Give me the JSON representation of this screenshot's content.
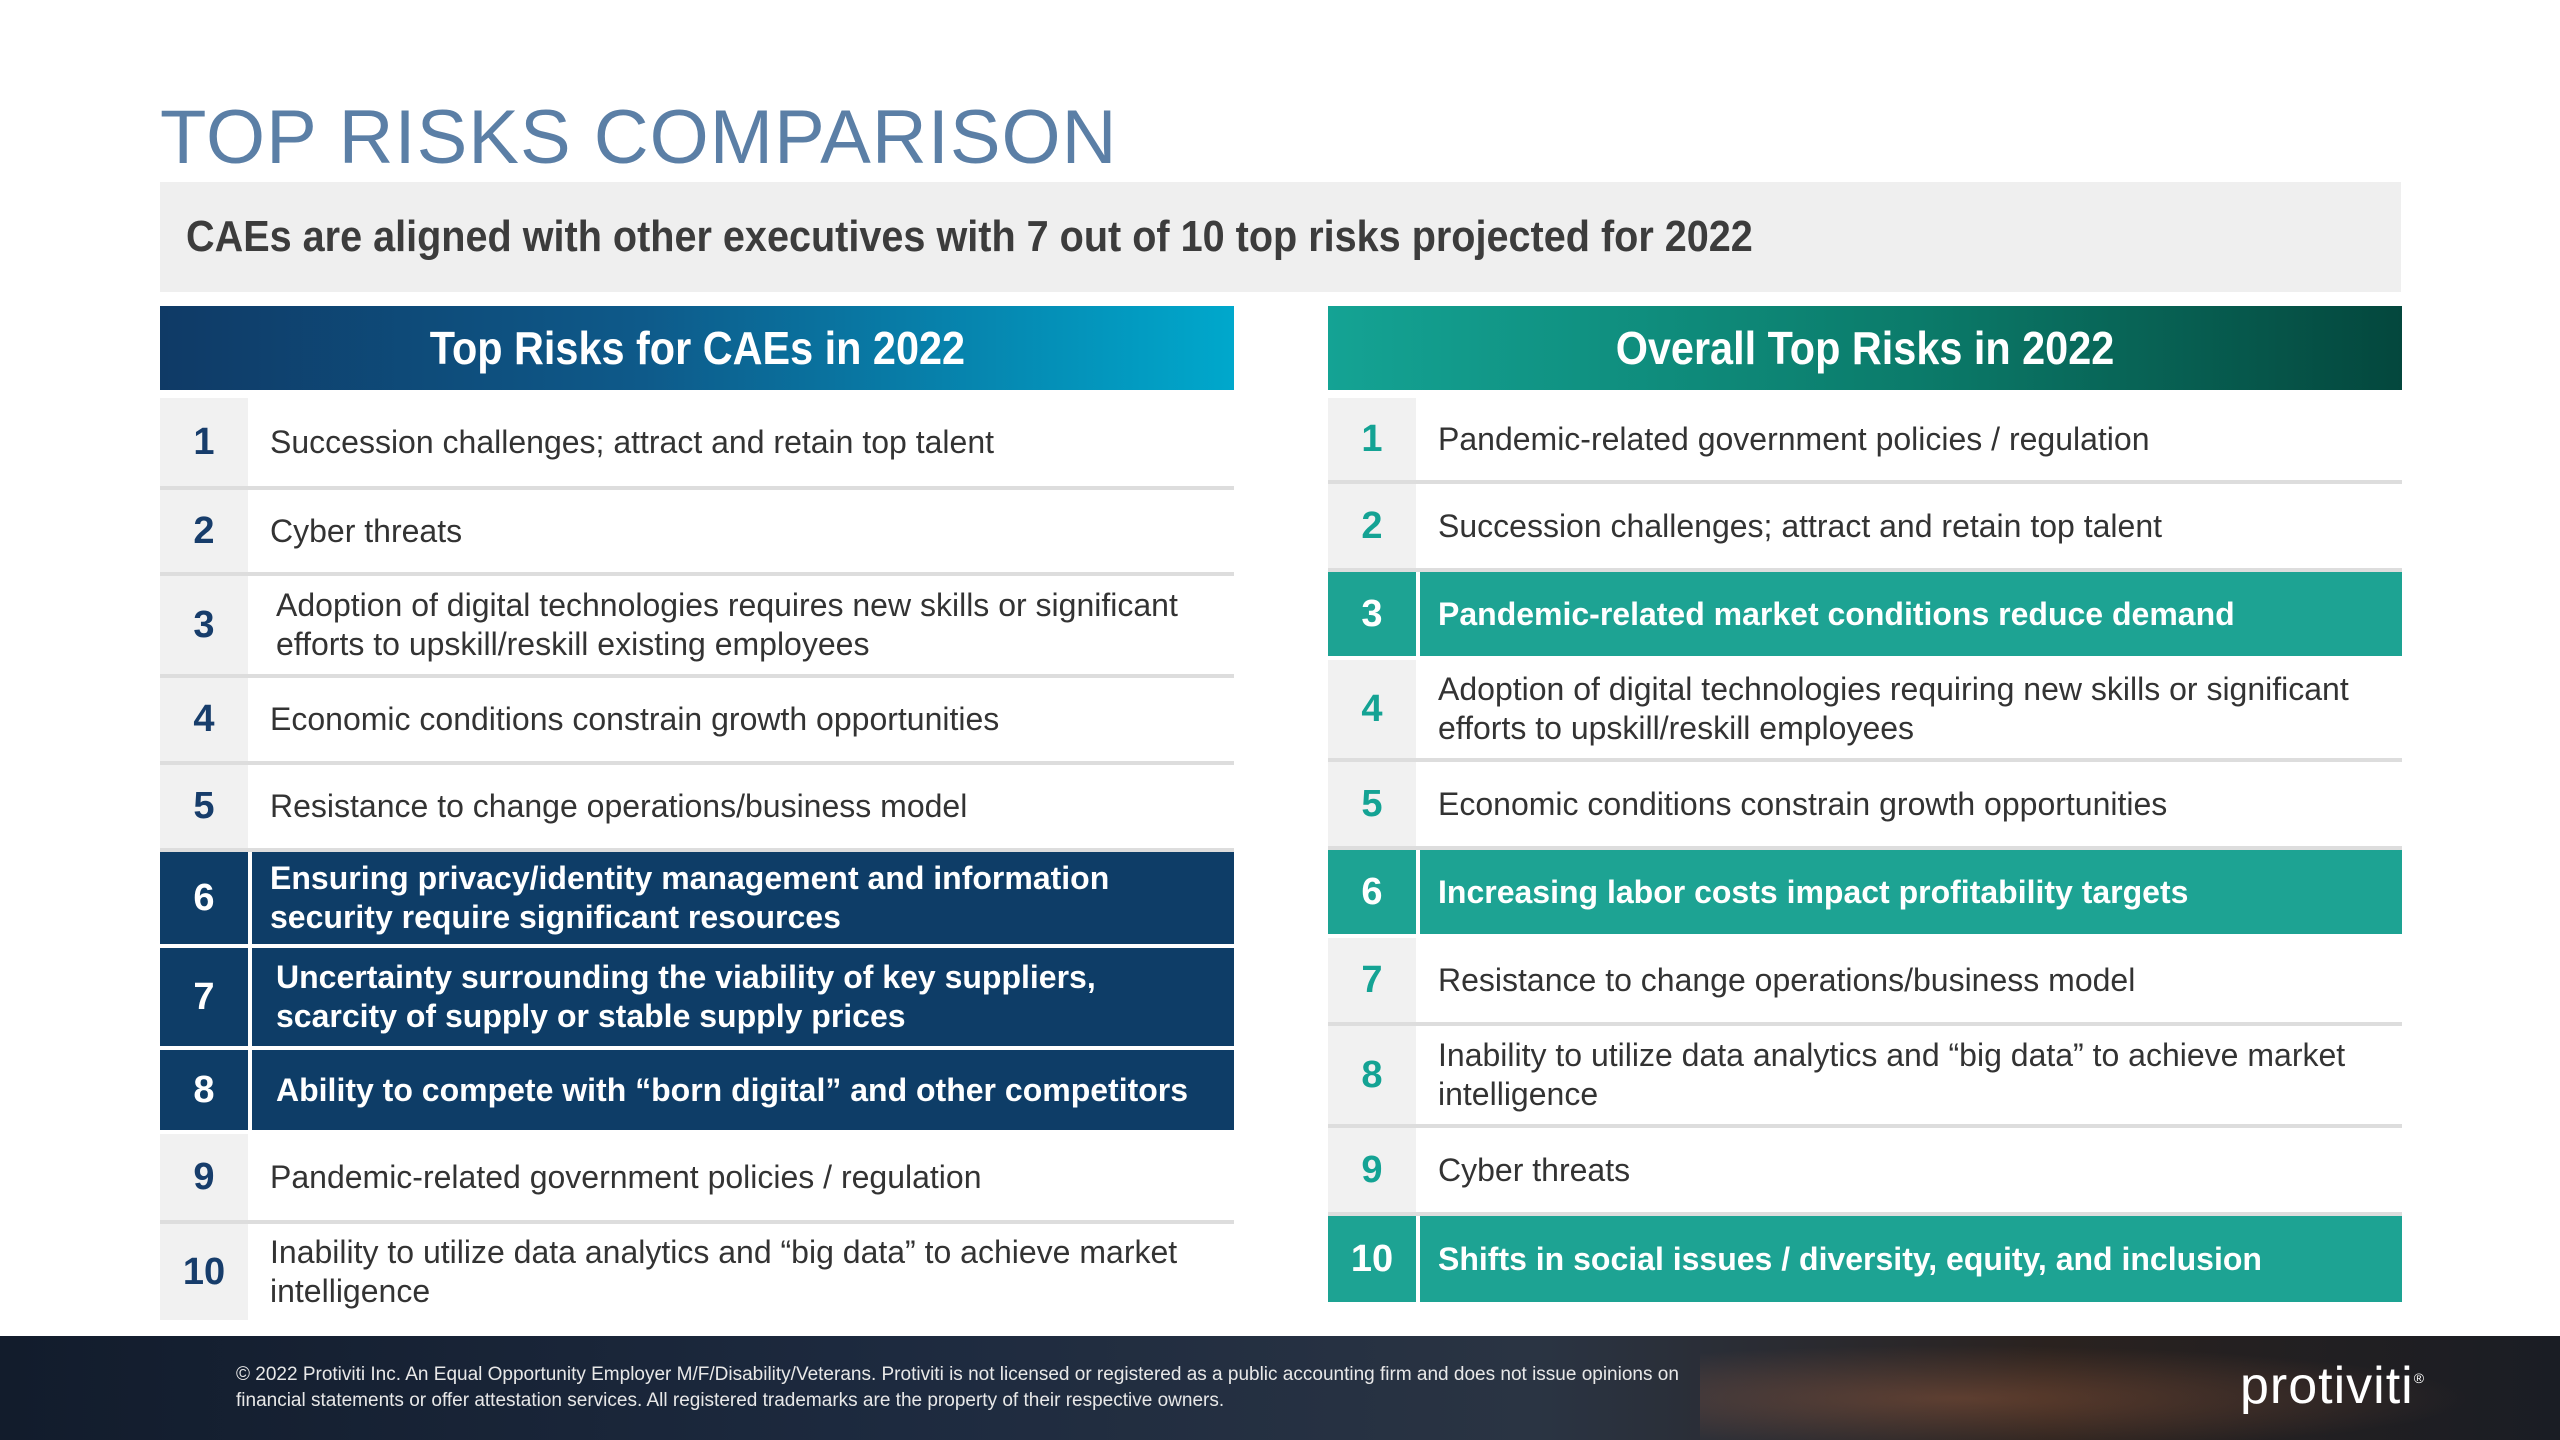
{
  "title": "TOP RISKS COMPARISON",
  "subtitle": "CAEs are aligned with other executives with 7 out of 10 top risks projected for 2022",
  "colors": {
    "title": "#5b7fa6",
    "cae_highlight": "#0e3d67",
    "overall_highlight": "#1da393"
  },
  "cae": {
    "header": "Top Risks for CAEs in 2022",
    "rows": [
      {
        "num": "1",
        "text": "Succession challenges; attract and retain top talent"
      },
      {
        "num": "2",
        "text": "Cyber threats"
      },
      {
        "num": "3",
        "text": "Adoption of digital technologies requires new skills or significant efforts to upskill/reskill existing employees"
      },
      {
        "num": "4",
        "text": "Economic conditions constrain growth opportunities"
      },
      {
        "num": "5",
        "text": "Resistance to change operations/business model"
      },
      {
        "num": "6",
        "text": "Ensuring privacy/identity management and information security require significant resources"
      },
      {
        "num": "7",
        "text": "Uncertainty surrounding the viability of key suppliers, scarcity of supply or stable supply prices"
      },
      {
        "num": "8",
        "text": "Ability to compete with “born digital” and other competitors"
      },
      {
        "num": "9",
        "text": "Pandemic-related government policies / regulation"
      },
      {
        "num": "10",
        "text": "Inability to utilize data analytics and “big data” to achieve market intelligence"
      }
    ]
  },
  "overall": {
    "header": "Overall Top Risks in 2022",
    "rows": [
      {
        "num": "1",
        "text": "Pandemic-related government policies / regulation"
      },
      {
        "num": "2",
        "text": "Succession challenges; attract and retain top talent"
      },
      {
        "num": "3",
        "text": "Pandemic-related market conditions reduce demand"
      },
      {
        "num": "4",
        "text": "Adoption of digital technologies requiring new skills or significant efforts to upskill/reskill employees"
      },
      {
        "num": "5",
        "text": "Economic conditions constrain growth opportunities"
      },
      {
        "num": "6",
        "text": "Increasing labor costs impact profitability targets"
      },
      {
        "num": "7",
        "text": "Resistance to change operations/business model"
      },
      {
        "num": "8",
        "text": "Inability to utilize data analytics and “big data” to achieve market intelligence"
      },
      {
        "num": "9",
        "text": "Cyber threats"
      },
      {
        "num": "10",
        "text": "Shifts in social issues / diversity, equity, and inclusion"
      }
    ]
  },
  "footer": {
    "legal": "© 2022 Protiviti Inc. An Equal Opportunity Employer M/F/Disability/Veterans. Protiviti is not licensed or registered as a public accounting firm and does not issue opinions on financial statements or offer attestation services. All registered trademarks are the property of their respective owners.",
    "logo": "protiviti",
    "logo_mark": "®"
  }
}
